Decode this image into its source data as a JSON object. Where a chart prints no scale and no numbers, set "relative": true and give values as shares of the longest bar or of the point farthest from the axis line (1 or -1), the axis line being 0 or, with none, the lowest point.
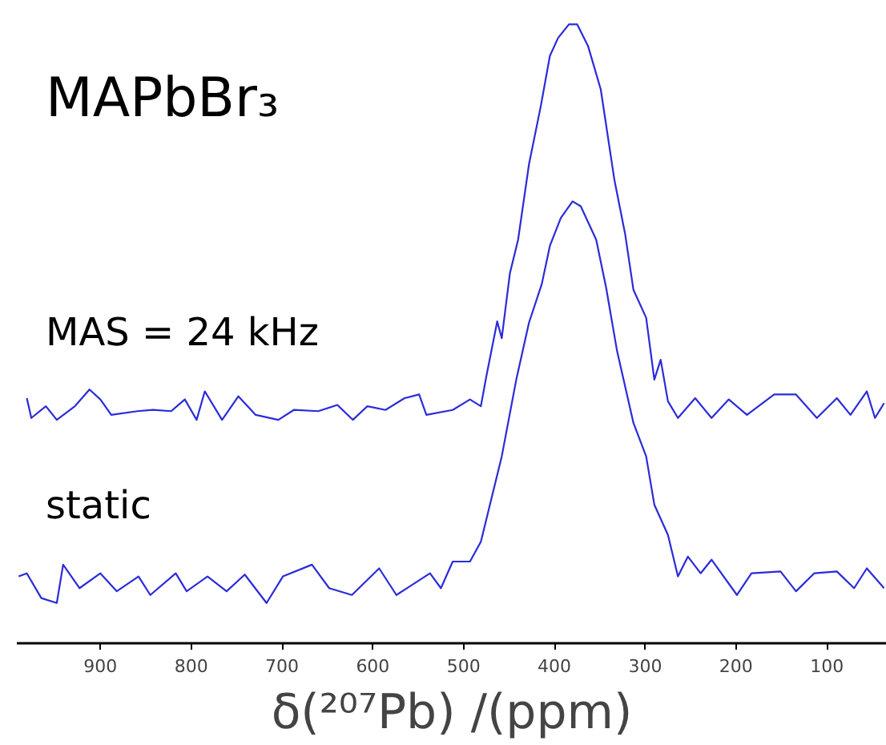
{
  "chart_data": {
    "type": "line",
    "relative": true,
    "xlabel": "δ(²⁰⁷Pb) /(ppm)",
    "xlim": [
      992,
      34
    ],
    "xticks": [
      900,
      800,
      700,
      600,
      500,
      400,
      300,
      200,
      100
    ],
    "grid": false,
    "marker": "none",
    "line_style": "solid",
    "annotations": [
      "MAPbBr₃",
      "MAS = 24 kHz",
      "static"
    ],
    "series": [
      {
        "color": "#2b2bd9",
        "x": [
          981,
          976,
          960,
          948,
          928,
          912,
          900,
          888,
          859,
          842,
          822,
          807,
          794,
          785,
          766,
          748,
          729,
          704,
          687,
          660,
          639,
          622,
          606,
          586,
          565,
          549,
          541,
          512,
          493,
          481,
          475,
          463,
          458,
          449,
          440,
          428,
          415,
          405,
          396,
          384,
          375,
          363,
          349,
          334,
          322,
          313,
          299,
          290,
          283,
          275,
          264,
          245,
          227,
          208,
          188,
          158,
          134,
          111,
          89,
          74,
          56,
          47,
          37
        ],
        "values": [
          0.396,
          0.364,
          0.383,
          0.361,
          0.383,
          0.41,
          0.394,
          0.369,
          0.375,
          0.377,
          0.375,
          0.394,
          0.361,
          0.407,
          0.361,
          0.399,
          0.369,
          0.361,
          0.377,
          0.375,
          0.385,
          0.361,
          0.383,
          0.377,
          0.396,
          0.402,
          0.369,
          0.377,
          0.394,
          0.383,
          0.431,
          0.52,
          0.493,
          0.598,
          0.652,
          0.774,
          0.868,
          0.949,
          0.978,
          1.0,
          1.0,
          0.965,
          0.895,
          0.749,
          0.66,
          0.571,
          0.526,
          0.426,
          0.458,
          0.391,
          0.364,
          0.396,
          0.364,
          0.394,
          0.369,
          0.402,
          0.402,
          0.364,
          0.396,
          0.369,
          0.407,
          0.364,
          0.388
        ]
      },
      {
        "color": "#2b2bd9",
        "x": [
          990,
          981,
          965,
          948,
          941,
          923,
          900,
          882,
          858,
          845,
          817,
          805,
          782,
          761,
          741,
          717,
          699,
          667,
          648,
          623,
          593,
          574,
          537,
          525,
          512,
          493,
          481,
          458,
          442,
          428,
          414,
          405,
          393,
          380,
          371,
          354,
          343,
          331,
          313,
          299,
          290,
          275,
          264,
          253,
          239,
          227,
          199,
          183,
          151,
          134,
          114,
          89,
          70,
          56,
          37
        ],
        "values": [
          0.108,
          0.113,
          0.073,
          0.065,
          0.127,
          0.089,
          0.113,
          0.084,
          0.108,
          0.078,
          0.113,
          0.084,
          0.108,
          0.084,
          0.111,
          0.065,
          0.108,
          0.127,
          0.089,
          0.078,
          0.121,
          0.078,
          0.113,
          0.089,
          0.132,
          0.132,
          0.164,
          0.302,
          0.426,
          0.518,
          0.58,
          0.642,
          0.687,
          0.714,
          0.706,
          0.652,
          0.574,
          0.472,
          0.356,
          0.302,
          0.224,
          0.175,
          0.108,
          0.14,
          0.113,
          0.135,
          0.078,
          0.113,
          0.116,
          0.084,
          0.113,
          0.116,
          0.089,
          0.121,
          0.089
        ]
      }
    ]
  }
}
